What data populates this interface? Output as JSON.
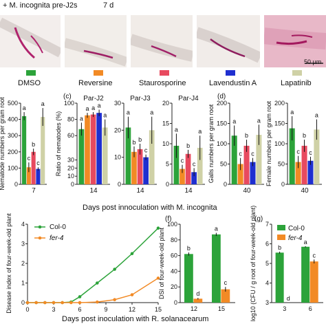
{
  "header": {
    "treatment_label": "+ M. incognita pre-J2s",
    "time_label": "7 d"
  },
  "images": {
    "scale_bar_label": "50 µm",
    "panel_colors": [
      "#f3eeec",
      "#f2eeea",
      "#f1ece8",
      "#f1ece9",
      "#e8b8c8"
    ]
  },
  "treatments": [
    {
      "label": "DMSO",
      "color": "#2ca33a"
    },
    {
      "label": "Reversine",
      "color": "#f28a25"
    },
    {
      "label": "Staurosporine",
      "color": "#e84a5f"
    },
    {
      "label": "Lavendustin A",
      "color": "#1f2fd0"
    },
    {
      "label": "Lapatinib",
      "color": "#cfd1a6"
    }
  ],
  "row2": {
    "panel_c_label": "(c)",
    "panel_d_label": "(d)",
    "xlabel_bc": "Days post innoculation with M. incognita"
  },
  "row3": {
    "panel_f_label": "(f)",
    "panel_g_label": "(g)",
    "xlabel_e": "Days post inoculation with R. solanacearum"
  },
  "chart_data": [
    {
      "id": "b",
      "type": "bar",
      "ylabel": "Nematode numbers per gram root",
      "categories": [
        "7"
      ],
      "yticks": [
        0,
        100,
        200,
        300,
        400,
        500
      ],
      "ylim": [
        0,
        500
      ],
      "series": [
        {
          "treatment": "DMSO",
          "values": [
            420
          ],
          "err": [
            25
          ],
          "letter": "a"
        },
        {
          "treatment": "Reversine",
          "values": [
            105
          ],
          "err": [
            30
          ],
          "letter": "c"
        },
        {
          "treatment": "Staurosporine",
          "values": [
            200
          ],
          "err": [
            20
          ],
          "letter": "b"
        },
        {
          "treatment": "Lavendustin A",
          "values": [
            95
          ],
          "err": [
            10
          ],
          "letter": "c"
        },
        {
          "treatment": "Lapatinib",
          "values": [
            415
          ],
          "err": [
            55
          ],
          "letter": "a"
        }
      ]
    },
    {
      "id": "c1",
      "type": "bar",
      "ylabel": "Ratio of nematodes (%)",
      "title": "Par-J2",
      "categories": [
        "14"
      ],
      "yticks": [
        0,
        10,
        20,
        30,
        60,
        80,
        100
      ],
      "ylim": [
        0,
        100
      ],
      "axis_break": true,
      "series": [
        {
          "treatment": "DMSO",
          "values": [
            68
          ],
          "err": [
            8
          ],
          "letter": "a"
        },
        {
          "treatment": "Reversine",
          "values": [
            85
          ],
          "err": [
            3
          ],
          "letter": "a"
        },
        {
          "treatment": "Staurosporine",
          "values": [
            86
          ],
          "err": [
            3
          ],
          "letter": "a"
        },
        {
          "treatment": "Lavendustin A",
          "values": [
            88
          ],
          "err": [
            4
          ],
          "letter": "a"
        },
        {
          "treatment": "Lapatinib",
          "values": [
            70
          ],
          "err": [
            10
          ],
          "letter": "a"
        }
      ]
    },
    {
      "id": "c2",
      "type": "bar",
      "title": "Par-J3",
      "categories": [
        "14"
      ],
      "yticks": [
        0,
        10,
        20,
        30
      ],
      "ylim": [
        0,
        30
      ],
      "series": [
        {
          "treatment": "DMSO",
          "values": [
            21
          ],
          "err": [
            4
          ],
          "letter": "a"
        },
        {
          "treatment": "Reversine",
          "values": [
            12
          ],
          "err": [
            2
          ],
          "letter": "b"
        },
        {
          "treatment": "Staurosporine",
          "values": [
            13
          ],
          "err": [
            2
          ],
          "letter": "b"
        },
        {
          "treatment": "Lavendustin A",
          "values": [
            10
          ],
          "err": [
            1
          ],
          "letter": "c"
        },
        {
          "treatment": "Lapatinib",
          "values": [
            20
          ],
          "err": [
            5
          ],
          "letter": "a"
        }
      ]
    },
    {
      "id": "c3",
      "type": "bar",
      "title": "Par-J4",
      "categories": [
        "14"
      ],
      "yticks": [
        0,
        5,
        10,
        15,
        20
      ],
      "ylim": [
        0,
        20
      ],
      "series": [
        {
          "treatment": "DMSO",
          "values": [
            9.5
          ],
          "err": [
            3
          ],
          "letter": "a"
        },
        {
          "treatment": "Reversine",
          "values": [
            3.8
          ],
          "err": [
            1
          ],
          "letter": "c"
        },
        {
          "treatment": "Staurosporine",
          "values": [
            7.5
          ],
          "err": [
            1
          ],
          "letter": "b"
        },
        {
          "treatment": "Lavendustin A",
          "values": [
            3
          ],
          "err": [
            1
          ],
          "letter": "c"
        },
        {
          "treatment": "Lapatinib",
          "values": [
            9
          ],
          "err": [
            3
          ],
          "letter": "a"
        }
      ]
    },
    {
      "id": "d1",
      "type": "bar",
      "ylabel": "Galls numbers per gram root",
      "categories": [
        "40"
      ],
      "yticks": [
        0,
        50,
        100,
        150,
        200
      ],
      "ylim": [
        0,
        200
      ],
      "series": [
        {
          "treatment": "DMSO",
          "values": [
            120
          ],
          "err": [
            25
          ],
          "letter": "a"
        },
        {
          "treatment": "Reversine",
          "values": [
            50
          ],
          "err": [
            15
          ],
          "letter": "c"
        },
        {
          "treatment": "Staurosporine",
          "values": [
            95
          ],
          "err": [
            15
          ],
          "letter": "b"
        },
        {
          "treatment": "Lavendustin A",
          "values": [
            55
          ],
          "err": [
            10
          ],
          "letter": "c"
        },
        {
          "treatment": "Lapatinib",
          "values": [
            122
          ],
          "err": [
            25
          ],
          "letter": "a"
        }
      ]
    },
    {
      "id": "d2",
      "type": "bar",
      "ylabel": "Female numbers per gram root",
      "categories": [
        "40"
      ],
      "yticks": [
        0,
        50,
        100,
        150,
        200
      ],
      "ylim": [
        0,
        200
      ],
      "series": [
        {
          "treatment": "DMSO",
          "values": [
            138
          ],
          "err": [
            30
          ],
          "letter": "a"
        },
        {
          "treatment": "Reversine",
          "values": [
            55
          ],
          "err": [
            15
          ],
          "letter": "c"
        },
        {
          "treatment": "Staurosporine",
          "values": [
            95
          ],
          "err": [
            15
          ],
          "letter": "b"
        },
        {
          "treatment": "Lavendustin A",
          "values": [
            58
          ],
          "err": [
            10
          ],
          "letter": "c"
        },
        {
          "treatment": "Lapatinib",
          "values": [
            135
          ],
          "err": [
            25
          ],
          "letter": "a"
        }
      ]
    },
    {
      "id": "e",
      "type": "line",
      "ylabel": "Disease index of four-week-old plant",
      "x": [
        0,
        1,
        2,
        3,
        4,
        5,
        6,
        8,
        10,
        12,
        15
      ],
      "xticks": [
        0,
        3,
        6,
        9,
        12,
        15
      ],
      "yticks": [
        0,
        1,
        2,
        3,
        4
      ],
      "ylim": [
        0,
        4
      ],
      "xlim": [
        0,
        15
      ],
      "series": [
        {
          "name": "Col-0",
          "color": "#2ca33a",
          "values": [
            0,
            0,
            0,
            0,
            0,
            0.03,
            0.3,
            1.0,
            1.7,
            2.5,
            3.8
          ]
        },
        {
          "name": "fer-4",
          "color": "#f28a25",
          "values": [
            0,
            0,
            0,
            0,
            0,
            0,
            0,
            0.03,
            0.15,
            0.4,
            1.25
          ]
        }
      ]
    },
    {
      "id": "f",
      "type": "bar",
      "ylabel": "DSI of four-week-old plant",
      "categories": [
        "12",
        "15"
      ],
      "yticks": [
        0,
        20,
        40,
        60,
        80,
        100
      ],
      "ylim": [
        0,
        100
      ],
      "series": [
        {
          "name": "Col-0",
          "color": "#2ca33a",
          "values": [
            62,
            87
          ],
          "err": [
            2,
            2
          ],
          "letters": [
            "b",
            "a"
          ]
        },
        {
          "name": "fer-4",
          "color": "#f28a25",
          "values": [
            5,
            17
          ],
          "err": [
            1,
            3
          ],
          "letters": [
            "d",
            "c"
          ]
        }
      ]
    },
    {
      "id": "g",
      "type": "bar",
      "ylabel": "log10 (CFU / g root of four-week-old plant)",
      "categories": [
        "3",
        "6"
      ],
      "yticks": [
        3,
        4,
        5,
        6,
        7
      ],
      "ylim": [
        3,
        7
      ],
      "legend": [
        "Col-0",
        "fer-4"
      ],
      "series": [
        {
          "name": "Col-0",
          "color": "#2ca33a",
          "values": [
            5.55,
            5.85
          ],
          "err": [
            0.05,
            0.03
          ],
          "letters": [
            "b",
            "a"
          ]
        },
        {
          "name": "fer-4",
          "color": "#f28a25",
          "values": [
            3,
            5.1
          ],
          "err": [
            0,
            0.1
          ],
          "letters": [
            "d",
            "c"
          ]
        }
      ]
    }
  ]
}
